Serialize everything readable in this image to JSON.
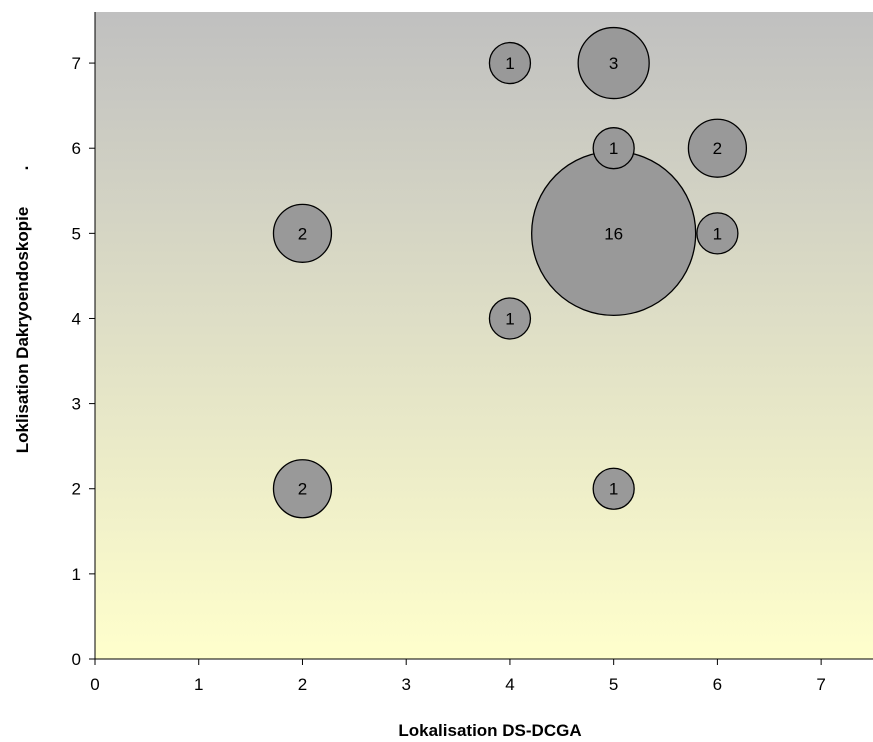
{
  "chart_data": {
    "type": "scatter",
    "subtype": "bubble",
    "title": "",
    "xlabel": "Lokalisation DS-DCGA",
    "ylabel": "Loklisation Dakryoendoskopie",
    "ylabel_suffix": ".",
    "xlim": [
      0,
      7.5
    ],
    "ylim": [
      0,
      7.6
    ],
    "x_ticks": [
      "0",
      "1",
      "2",
      "3",
      "4",
      "5",
      "6",
      "7"
    ],
    "y_ticks": [
      "0",
      "1",
      "2",
      "3",
      "4",
      "5",
      "6",
      "7"
    ],
    "grid": false,
    "legend": "none",
    "points": [
      {
        "x": 4,
        "y": 7,
        "size": 1,
        "label": "1"
      },
      {
        "x": 5,
        "y": 7,
        "size": 3,
        "label": "3"
      },
      {
        "x": 5,
        "y": 6,
        "size": 1,
        "label": "1"
      },
      {
        "x": 6,
        "y": 6,
        "size": 2,
        "label": "2"
      },
      {
        "x": 2,
        "y": 5,
        "size": 2,
        "label": "2"
      },
      {
        "x": 5,
        "y": 5,
        "size": 16,
        "label": "16"
      },
      {
        "x": 6,
        "y": 5,
        "size": 1,
        "label": "1"
      },
      {
        "x": 4,
        "y": 4,
        "size": 1,
        "label": "1"
      },
      {
        "x": 2,
        "y": 2,
        "size": 2,
        "label": "2"
      },
      {
        "x": 5,
        "y": 2,
        "size": 1,
        "label": "1"
      }
    ],
    "colors": {
      "bubble_fill": "#999999",
      "bubble_stroke": "#000000",
      "background_top": "#c0c0c0",
      "background_bottom": "#ffffcc"
    }
  }
}
